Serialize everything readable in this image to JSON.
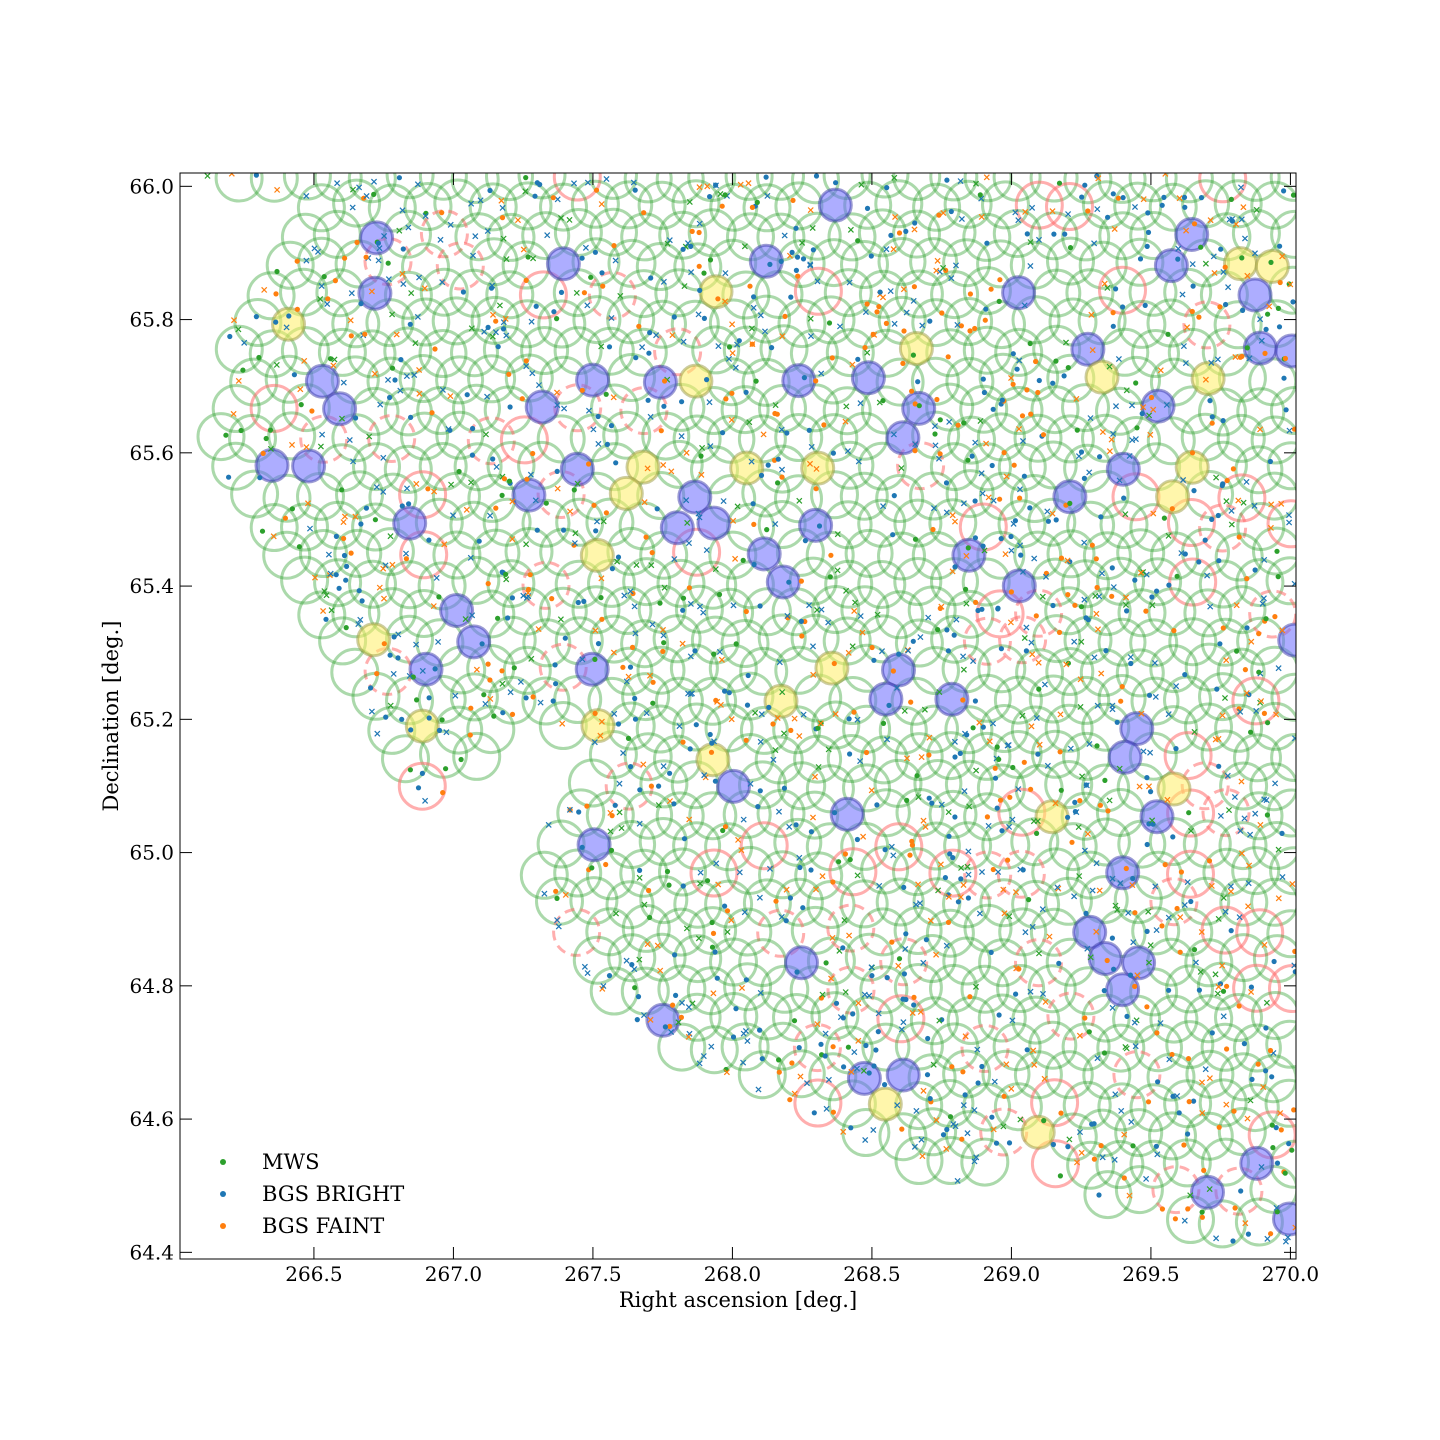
{
  "chart_data": {
    "type": "scatter",
    "title": "",
    "xlabel": "Right ascension [deg.]",
    "ylabel": "Declination [deg.]",
    "xlim": [
      266.02,
      270.02
    ],
    "ylim": [
      64.39,
      66.02
    ],
    "x_ticks": [
      "266.5",
      "267.0",
      "267.5",
      "268.0",
      "268.5",
      "269.0",
      "269.5",
      "270.0"
    ],
    "y_ticks": [
      "64.4",
      "64.6",
      "64.8",
      "65.0",
      "65.2",
      "65.4",
      "65.6",
      "65.8",
      "66.0"
    ],
    "x_tick_values": [
      266.5,
      267.0,
      267.5,
      268.0,
      268.5,
      269.0,
      269.5,
      270.0
    ],
    "y_tick_values": [
      64.4,
      64.6,
      64.8,
      65.0,
      65.2,
      65.4,
      65.6,
      65.8,
      66.0
    ],
    "grid": false,
    "legend_position": "lower-left",
    "series": [
      {
        "name": "MWS",
        "color": "#2ca02c"
      },
      {
        "name": "BGS BRIGHT",
        "color": "#1f77b4"
      },
      {
        "name": "BGS FAINT",
        "color": "#ff7f0e"
      }
    ],
    "fiber_rings": {
      "color_assigned": "#2ca02c",
      "color_unassigned": "#ff6b6b",
      "note_visible": false
    },
    "filled_markers": {
      "blue_fill": "#6a6aff",
      "yellow_fill": "#ffee66"
    }
  }
}
